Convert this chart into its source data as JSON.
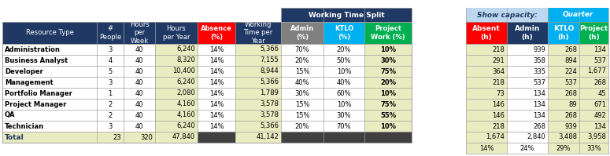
{
  "header_bg": "#1f3864",
  "header_text": "#ffffff",
  "absence_bg": "#ff0000",
  "absence_text": "#ffffff",
  "admin_bg": "#808080",
  "admin_text": "#ffffff",
  "ktlo_bg": "#00b0f0",
  "ktlo_text": "#ffffff",
  "project_bg": "#00b050",
  "project_text": "#ffffff",
  "show_capacity_bg": "#bdd7ee",
  "show_capacity_text": "#1f3864",
  "quarter_bg": "#00b0f0",
  "quarter_text": "#ffffff",
  "absent_h_bg": "#ff0000",
  "absent_h_text": "#ffffff",
  "row_light": "#e9ecc0",
  "row_white": "#ffffff",
  "dark_total": "#404040",
  "outer_bg": "#ffffff",
  "border": "#a0a0a0",
  "total_text_color": "#1f3864",
  "rows": [
    [
      "Administration",
      "3",
      "40",
      "6,240",
      "14%",
      "5,366",
      "70%",
      "20%",
      "10%",
      "218",
      "939",
      "268",
      "134"
    ],
    [
      "Business Analyst",
      "4",
      "40",
      "8,320",
      "14%",
      "7,155",
      "20%",
      "50%",
      "30%",
      "291",
      "358",
      "894",
      "537"
    ],
    [
      "Developer",
      "5",
      "40",
      "10,400",
      "14%",
      "8,944",
      "15%",
      "10%",
      "75%",
      "364",
      "335",
      "224",
      "1,677"
    ],
    [
      "Management",
      "3",
      "40",
      "6,240",
      "14%",
      "5,366",
      "40%",
      "40%",
      "20%",
      "218",
      "537",
      "537",
      "268"
    ],
    [
      "Portfolio Manager",
      "1",
      "40",
      "2,080",
      "14%",
      "1,789",
      "30%",
      "60%",
      "10%",
      "73",
      "134",
      "268",
      "45"
    ],
    [
      "Project Manager",
      "2",
      "40",
      "4,160",
      "14%",
      "3,578",
      "15%",
      "10%",
      "75%",
      "146",
      "134",
      "89",
      "671"
    ],
    [
      "QA",
      "2",
      "40",
      "4,160",
      "14%",
      "3,578",
      "15%",
      "30%",
      "55%",
      "146",
      "134",
      "268",
      "492"
    ],
    [
      "Technician",
      "3",
      "40",
      "6,240",
      "14%",
      "5,366",
      "20%",
      "70%",
      "10%",
      "218",
      "268",
      "939",
      "134"
    ]
  ],
  "right_totals": [
    "1,674",
    "2,840",
    "3,488",
    "3,958"
  ],
  "right_pcts": [
    "14%",
    "24%",
    "29%",
    "33%"
  ],
  "left_total": [
    "23",
    "320",
    "47,840",
    "41,142"
  ]
}
